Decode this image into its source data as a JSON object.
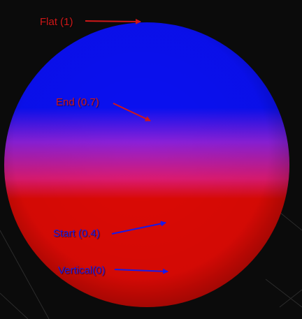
{
  "background_color": "#0b0b0b",
  "sphere": {
    "top_color": "#0a10f2",
    "middle_color": "#8a20d8",
    "bottom_color": "#dc0a05"
  },
  "annotations": [
    {
      "id": "flat",
      "label": "Flat (1)",
      "value": 1,
      "color": "#d01818"
    },
    {
      "id": "end",
      "label": "End (0.7)",
      "value": 0.7,
      "color": "#d01818"
    },
    {
      "id": "start",
      "label": "Start (0.4)",
      "value": 0.4,
      "color": "#1a1ae6"
    },
    {
      "id": "vertical",
      "label": "Vertical(0)",
      "value": 0,
      "color": "#1a1ae6"
    }
  ]
}
